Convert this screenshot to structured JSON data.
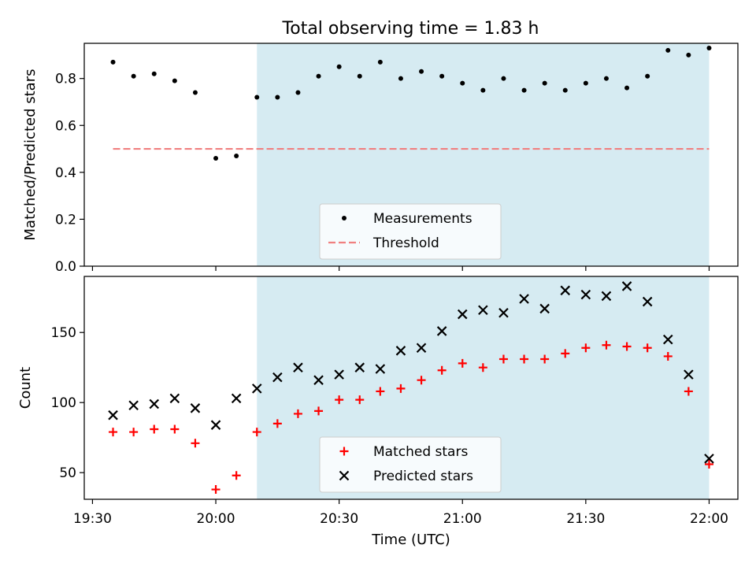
{
  "title": "Total observing time = 1.83 h",
  "colors": {
    "shade": "#add8e6",
    "measurement": "#000000",
    "threshold": "#f08080",
    "matched": "#ff0000",
    "predicted": "#000000"
  },
  "chart_data": [
    {
      "type": "scatter",
      "ylabel": "Matched/Predicted stars",
      "ylim": [
        0,
        0.95
      ],
      "yticks": [
        0.0,
        0.2,
        0.4,
        0.6,
        0.8
      ],
      "ytick_labels": [
        "0.0",
        "0.2",
        "0.4",
        "0.6",
        "0.8"
      ],
      "xlim": [
        "19:28",
        "22:07"
      ],
      "shaded_range": [
        "20:10",
        "22:00"
      ],
      "legend_position": "lower center",
      "series": [
        {
          "name": "Measurements",
          "marker": "dot",
          "x": [
            "19:35",
            "19:40",
            "19:45",
            "19:50",
            "19:55",
            "20:00",
            "20:05",
            "20:10",
            "20:15",
            "20:20",
            "20:25",
            "20:30",
            "20:35",
            "20:40",
            "20:45",
            "20:50",
            "20:55",
            "21:00",
            "21:05",
            "21:10",
            "21:15",
            "21:20",
            "21:25",
            "21:30",
            "21:35",
            "21:40",
            "21:45",
            "21:50",
            "21:55",
            "22:00"
          ],
          "y": [
            0.87,
            0.81,
            0.82,
            0.79,
            0.74,
            0.46,
            0.47,
            0.72,
            0.72,
            0.74,
            0.81,
            0.85,
            0.81,
            0.87,
            0.8,
            0.83,
            0.81,
            0.78,
            0.75,
            0.8,
            0.75,
            0.78,
            0.75,
            0.78,
            0.8,
            0.76,
            0.81,
            0.92,
            0.9,
            0.93
          ]
        },
        {
          "name": "Threshold",
          "marker": "dashed-line",
          "x": [
            "19:35",
            "22:00"
          ],
          "y": [
            0.5,
            0.5
          ]
        }
      ]
    },
    {
      "type": "scatter",
      "ylabel": "Count",
      "xlabel": "Time (UTC)",
      "ylim": [
        31,
        190
      ],
      "yticks": [
        50,
        100,
        150
      ],
      "ytick_labels": [
        "50",
        "100",
        "150"
      ],
      "xlim": [
        "19:28",
        "22:07"
      ],
      "xticks": [
        "19:30",
        "20:00",
        "20:30",
        "21:00",
        "21:30",
        "22:00"
      ],
      "xtick_labels": [
        "19:30",
        "20:00",
        "20:30",
        "21:00",
        "21:30",
        "22:00"
      ],
      "shaded_range": [
        "20:10",
        "22:00"
      ],
      "legend_position": "lower center",
      "series": [
        {
          "name": "Matched stars",
          "marker": "plus",
          "x": [
            "19:35",
            "19:40",
            "19:45",
            "19:50",
            "19:55",
            "20:00",
            "20:05",
            "20:10",
            "20:15",
            "20:20",
            "20:25",
            "20:30",
            "20:35",
            "20:40",
            "20:45",
            "20:50",
            "20:55",
            "21:00",
            "21:05",
            "21:10",
            "21:15",
            "21:20",
            "21:25",
            "21:30",
            "21:35",
            "21:40",
            "21:45",
            "21:50",
            "21:55",
            "22:00"
          ],
          "y": [
            79,
            79,
            81,
            81,
            71,
            38,
            48,
            79,
            85,
            92,
            94,
            102,
            102,
            108,
            110,
            116,
            123,
            128,
            125,
            131,
            131,
            131,
            135,
            139,
            141,
            140,
            139,
            133,
            108,
            56
          ]
        },
        {
          "name": "Predicted stars",
          "marker": "x",
          "x": [
            "19:35",
            "19:40",
            "19:45",
            "19:50",
            "19:55",
            "20:00",
            "20:05",
            "20:10",
            "20:15",
            "20:20",
            "20:25",
            "20:30",
            "20:35",
            "20:40",
            "20:45",
            "20:50",
            "20:55",
            "21:00",
            "21:05",
            "21:10",
            "21:15",
            "21:20",
            "21:25",
            "21:30",
            "21:35",
            "21:40",
            "21:45",
            "21:50",
            "21:55",
            "22:00"
          ],
          "y": [
            91,
            98,
            99,
            103,
            96,
            84,
            103,
            110,
            118,
            125,
            116,
            120,
            125,
            124,
            137,
            139,
            151,
            163,
            166,
            164,
            174,
            167,
            180,
            177,
            176,
            183,
            172,
            145,
            120,
            60
          ]
        }
      ]
    }
  ]
}
